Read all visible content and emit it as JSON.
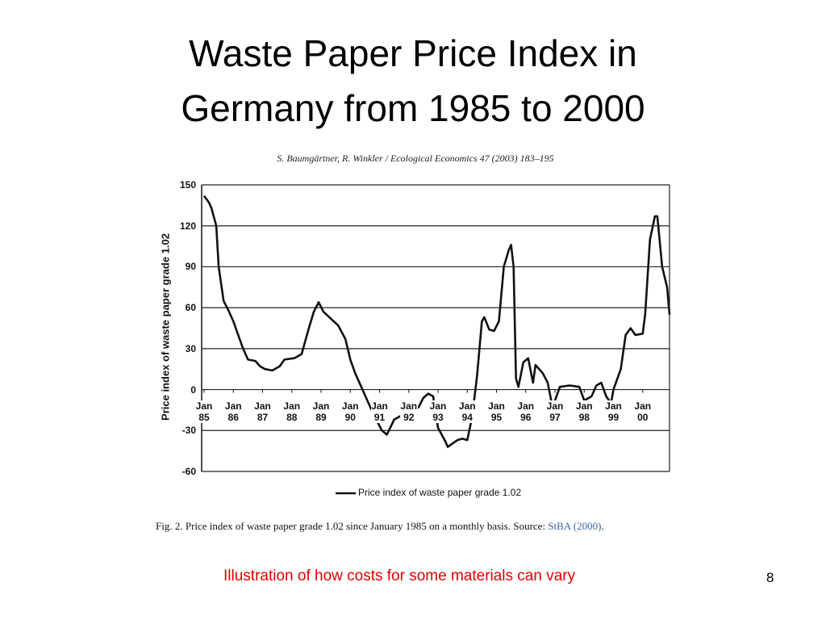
{
  "slide": {
    "title": "Waste Paper Price Index in Germany from 1985 to 2000",
    "subtitle": "Illustration of how costs for some materials can vary",
    "page_number": "8"
  },
  "chart_data": {
    "type": "line",
    "citation": "S. Baumgärtner, R. Winkler / Ecological Economics 47 (2003) 183–195",
    "ylabel": "Price index of waste paper grade 1.02",
    "caption": "Fig. 2. Price index of waste paper grade 1.02 since January 1985 on a monthly basis. Source:",
    "source": "StBA (2000)",
    "caption_end": ".",
    "x": [
      "1985-01",
      "1985-03",
      "1985-04",
      "1985-06",
      "1985-07",
      "1985-09",
      "1985-11",
      "1986-01",
      "1986-03",
      "1986-05",
      "1986-07",
      "1986-10",
      "1986-12",
      "1987-02",
      "1987-05",
      "1987-08",
      "1987-10",
      "1988-02",
      "1988-05",
      "1988-08",
      "1988-10",
      "1988-12",
      "1989-02",
      "1989-05",
      "1989-08",
      "1989-11",
      "1990-01",
      "1990-03",
      "1990-06",
      "1990-08",
      "1990-11",
      "1991-02",
      "1991-04",
      "1991-07",
      "1991-11",
      "1992-02",
      "1992-05",
      "1992-07",
      "1992-09",
      "1992-11",
      "1993-01",
      "1993-04",
      "1993-05",
      "1993-09",
      "1993-11",
      "1994-01",
      "1994-03",
      "1994-05",
      "1994-07",
      "1994-08",
      "1994-10",
      "1994-12",
      "1995-02",
      "1995-04",
      "1995-06",
      "1995-07",
      "1995-08",
      "1995-09",
      "1995-10",
      "1995-12",
      "1996-02",
      "1996-04",
      "1996-05",
      "1996-08",
      "1996-10",
      "1996-12",
      "1997-03",
      "1997-07",
      "1997-11",
      "1998-01",
      "1998-04",
      "1998-06",
      "1998-08",
      "1998-10",
      "1998-12",
      "1999-01",
      "1999-04",
      "1999-06",
      "1999-08",
      "1999-10",
      "2000-01",
      "2000-02",
      "2000-04",
      "2000-06",
      "2000-07",
      "2000-09",
      "2000-11",
      "2000-12"
    ],
    "series": [
      {
        "name": "Price index of waste paper grade 1.02",
        "color": "#111111",
        "values": [
          142,
          137,
          133,
          120,
          90,
          65,
          58,
          50,
          40,
          30,
          22,
          21,
          17,
          15,
          14,
          17,
          22,
          23,
          26,
          45,
          57,
          64,
          57,
          52,
          47,
          37,
          22,
          12,
          0,
          -8,
          -20,
          -30,
          -33,
          -22,
          -18,
          -16,
          -13,
          -6,
          -3,
          -5,
          -28,
          -38,
          -42,
          -37,
          -36,
          -37,
          -20,
          10,
          50,
          53,
          44,
          43,
          50,
          90,
          102,
          106,
          90,
          8,
          2,
          20,
          23,
          5,
          18,
          12,
          5,
          -13,
          2,
          3,
          2,
          -8,
          -5,
          3,
          5,
          -5,
          -10,
          0,
          15,
          40,
          45,
          40,
          41,
          55,
          110,
          127,
          127,
          90,
          75,
          55
        ]
      }
    ],
    "xlim": [
      "1984-12",
      "2000-12"
    ],
    "xticks": [
      {
        "value": "1985-01",
        "label": "Jan 85"
      },
      {
        "value": "1986-01",
        "label": "Jan 86"
      },
      {
        "value": "1987-01",
        "label": "Jan 87"
      },
      {
        "value": "1988-01",
        "label": "Jan 88"
      },
      {
        "value": "1989-01",
        "label": "Jan 89"
      },
      {
        "value": "1990-01",
        "label": "Jan 90"
      },
      {
        "value": "1991-01",
        "label": "Jan 91"
      },
      {
        "value": "1992-01",
        "label": "Jan 92"
      },
      {
        "value": "1993-01",
        "label": "Jan 93"
      },
      {
        "value": "1994-01",
        "label": "Jan 94"
      },
      {
        "value": "1995-01",
        "label": "Jan 95"
      },
      {
        "value": "1996-01",
        "label": "Jan 96"
      },
      {
        "value": "1997-01",
        "label": "Jan 97"
      },
      {
        "value": "1998-01",
        "label": "Jan 98"
      },
      {
        "value": "1999-01",
        "label": "Jan 99"
      },
      {
        "value": "2000-01",
        "label": "Jan 00"
      }
    ],
    "ylim": [
      -60,
      150
    ],
    "yticks": [
      -60,
      -30,
      0,
      30,
      60,
      90,
      120,
      150
    ],
    "grid": true,
    "legend": "bottom"
  }
}
